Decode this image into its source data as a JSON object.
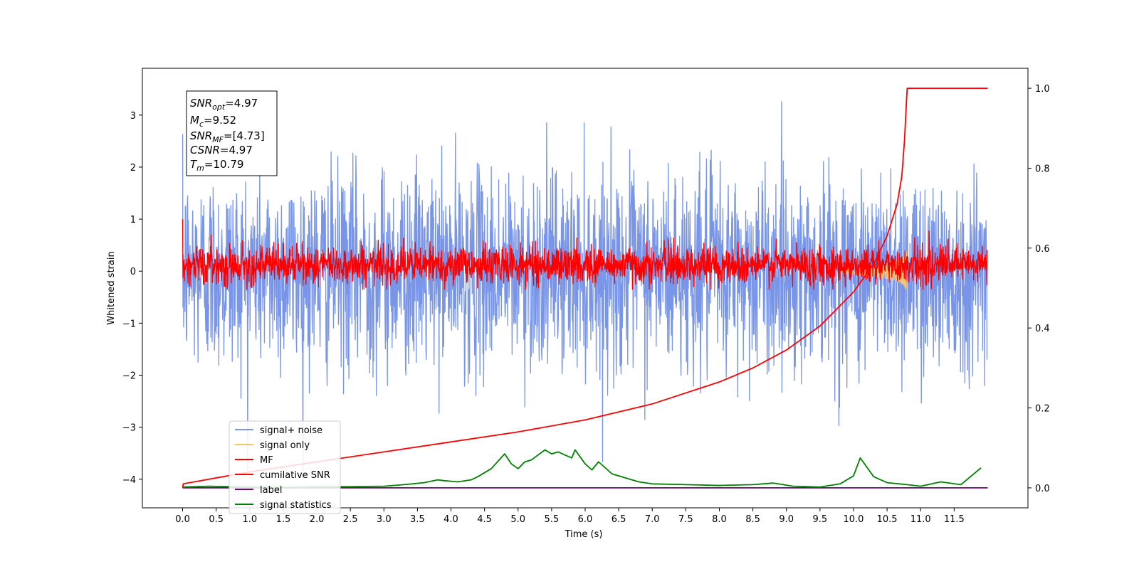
{
  "chart_data": {
    "type": "line",
    "xlabel": "Time (s)",
    "ylabel": "Whitened strain",
    "xlim": [
      -0.6,
      12.6
    ],
    "ylim": [
      -4.55,
      3.9
    ],
    "y2lim": [
      -0.05,
      1.05
    ],
    "x_ticks": [
      "0.0",
      "0.5",
      "1.0",
      "1.5",
      "2.0",
      "2.5",
      "3.0",
      "3.5",
      "4.0",
      "4.5",
      "5.0",
      "5.5",
      "6.0",
      "6.5",
      "7.0",
      "7.5",
      "8.0",
      "8.5",
      "9.0",
      "9.5",
      "10.0",
      "10.5",
      "11.0",
      "11.5"
    ],
    "y_ticks": [
      "3",
      "2",
      "1",
      "0",
      "−1",
      "−2",
      "−3",
      "−4"
    ],
    "y2_ticks": [
      "1.0",
      "0.8",
      "0.6",
      "0.4",
      "0.2",
      "0.0"
    ],
    "annotation": {
      "snr_opt": {
        "main": "SNR",
        "sub": "opt",
        "value": "=4.97"
      },
      "mc": {
        "main": "M",
        "sub": "c",
        "value": "=9.52"
      },
      "snr_mf": {
        "main": "SNR",
        "sub": "MF",
        "value": "=[4.73]"
      },
      "csnr": {
        "main": "CSNR",
        "sub": "",
        "value": "=4.97"
      },
      "tm": {
        "main": "T",
        "sub": "m",
        "value": "=10.79"
      }
    },
    "legend": {
      "placement": "lower-left",
      "entries": [
        {
          "label": "signal+ noise",
          "color": "#7895e8"
        },
        {
          "label": "signal only",
          "color": "#f5c36b"
        },
        {
          "label": "MF",
          "color": "#ff0000"
        },
        {
          "label": "cumilative SNR",
          "color": "#ff0000"
        },
        {
          "label": "label",
          "color": "#6a0a6a"
        },
        {
          "label": "signal statistics",
          "color": "#008000"
        }
      ]
    },
    "series": [
      {
        "name": "signal+ noise",
        "axis": "left",
        "x_range": [
          0,
          11.99
        ],
        "approx_std": 0.95,
        "peak_max": 3.55,
        "peak_min": -4.1,
        "color": "#7895e8"
      },
      {
        "name": "signal only",
        "axis": "left",
        "x_range": [
          9.8,
          10.79
        ],
        "peak_max": 0.65,
        "peak_min": -0.8,
        "color": "#f5c36b"
      },
      {
        "name": "MF",
        "axis": "left",
        "x_range": [
          0,
          11.99
        ],
        "approx_std": 0.18,
        "peak_max": 1.0,
        "peak_min": -0.35,
        "color": "#ff0000"
      },
      {
        "name": "cumilative SNR",
        "axis": "right",
        "color": "#ff0000",
        "x": [
          0,
          0.01,
          1,
          2,
          3,
          4,
          5,
          6,
          7,
          8,
          8.5,
          9,
          9.5,
          10,
          10.3,
          10.5,
          10.65,
          10.72,
          10.76,
          10.79,
          10.8,
          12.0
        ],
        "y": [
          0,
          0.01,
          0.04,
          0.065,
          0.09,
          0.115,
          0.14,
          0.17,
          0.21,
          0.265,
          0.3,
          0.345,
          0.405,
          0.49,
          0.56,
          0.63,
          0.71,
          0.78,
          0.87,
          0.97,
          1.0,
          1.0
        ]
      },
      {
        "name": "label",
        "axis": "right",
        "color": "#6a0a6a",
        "x": [
          0,
          12.0
        ],
        "y": [
          0,
          0
        ]
      },
      {
        "name": "signal statistics",
        "axis": "right",
        "color": "#008000",
        "x": [
          0,
          0.4,
          1.0,
          1.5,
          2.0,
          2.5,
          3.0,
          3.3,
          3.6,
          3.8,
          3.9,
          4.1,
          4.3,
          4.4,
          4.5,
          4.6,
          4.8,
          4.9,
          5.0,
          5.1,
          5.2,
          5.4,
          5.5,
          5.6,
          5.7,
          5.8,
          5.85,
          6.0,
          6.1,
          6.2,
          6.4,
          6.6,
          6.8,
          7.0,
          7.5,
          8.0,
          8.5,
          8.8,
          9.1,
          9.5,
          9.8,
          10.0,
          10.1,
          10.3,
          10.5,
          10.8,
          11.0,
          11.3,
          11.6,
          11.9
        ],
        "y": [
          0.002,
          0.004,
          0.002,
          0.001,
          0.003,
          0.003,
          0.004,
          0.008,
          0.013,
          0.02,
          0.018,
          0.015,
          0.02,
          0.028,
          0.038,
          0.048,
          0.085,
          0.06,
          0.048,
          0.065,
          0.07,
          0.095,
          0.085,
          0.09,
          0.082,
          0.075,
          0.095,
          0.06,
          0.045,
          0.065,
          0.035,
          0.025,
          0.015,
          0.01,
          0.008,
          0.006,
          0.008,
          0.012,
          0.004,
          0.002,
          0.01,
          0.03,
          0.075,
          0.028,
          0.013,
          0.008,
          0.004,
          0.015,
          0.008,
          0.05
        ]
      }
    ]
  }
}
